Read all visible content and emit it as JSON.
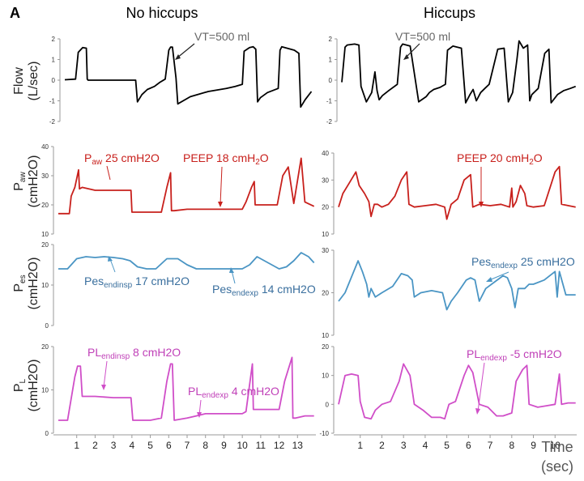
{
  "figure": {
    "panel_label": "A",
    "columns": [
      "No hiccups",
      "Hiccups"
    ],
    "row_labels": [
      {
        "main": "Flow",
        "sub": "",
        "line2": "(L/sec)"
      },
      {
        "main": "P",
        "sub": "aw",
        "line2": "(cmH2O)"
      },
      {
        "main": "P",
        "sub": "es",
        "line2": "(cmH2O)"
      },
      {
        "main": "P",
        "sub": "L",
        "line2": "(cmH2O)"
      }
    ],
    "time_label": "Time",
    "time_unit": "(sec)"
  },
  "chart_data": [
    {
      "type": "line",
      "id": "flow-left",
      "column": "No hiccups",
      "ylabel": "Flow (L/sec)",
      "ylim": [
        -2,
        2
      ],
      "yticks": [
        "2",
        "1",
        "0",
        "-1",
        "-2"
      ],
      "xlim": [
        0,
        14
      ],
      "color": "#000000",
      "x": [
        0,
        0.6,
        0.75,
        1.0,
        1.2,
        1.25,
        1.3,
        2.0,
        3.0,
        3.5,
        3.95,
        4.05,
        4.3,
        4.6,
        5.0,
        5.3,
        5.6,
        5.8,
        5.9,
        6.0,
        6.2,
        6.3,
        7.0,
        8.0,
        9.0,
        9.5,
        9.9,
        10.0,
        10.3,
        10.5,
        10.65,
        10.75,
        10.9,
        11.3,
        11.9,
        12.0,
        12.1,
        12.8,
        13.05,
        13.15,
        13.4,
        13.75
      ],
      "y": [
        0.02,
        0.05,
        1.35,
        1.58,
        1.55,
        0.05,
        0.0,
        0.0,
        0.0,
        0.0,
        0.0,
        -1.05,
        -0.7,
        -0.45,
        -0.3,
        -0.1,
        0.05,
        1.45,
        1.6,
        1.6,
        0.1,
        -1.15,
        -0.8,
        -0.55,
        -0.4,
        -0.3,
        -0.2,
        1.4,
        1.58,
        1.62,
        1.5,
        -1.05,
        -0.85,
        -0.6,
        -0.4,
        1.45,
        1.62,
        1.45,
        1.3,
        -1.3,
        -0.95,
        -0.55
      ],
      "annotations": [
        {
          "text": "VT=500 ml",
          "sub": ""
        }
      ]
    },
    {
      "type": "line",
      "id": "flow-right",
      "column": "Hiccups",
      "ylabel": "Flow (L/sec)",
      "ylim": [
        -2,
        2
      ],
      "yticks": [
        "2",
        "1",
        "0",
        "-1",
        "-2"
      ],
      "xlim": [
        0,
        11
      ],
      "color": "#000000",
      "x": [
        0,
        0.15,
        0.25,
        0.6,
        0.8,
        0.9,
        1.15,
        1.4,
        1.55,
        1.65,
        1.75,
        1.9,
        2.2,
        2.6,
        2.75,
        2.85,
        3.2,
        3.6,
        3.95,
        4.1,
        4.3,
        4.6,
        4.85,
        4.95,
        5.2,
        5.6,
        5.8,
        6.0,
        6.15,
        6.3,
        6.5,
        6.7,
        6.9,
        7.3,
        7.6,
        7.8,
        8.0,
        8.2,
        8.3,
        8.5,
        8.7,
        8.8,
        8.9,
        9.2,
        9.5,
        9.7,
        9.8,
        10.1,
        10.4,
        10.7,
        10.95
      ],
      "y": [
        -0.1,
        1.6,
        1.7,
        1.75,
        1.7,
        -0.3,
        -1.05,
        -0.6,
        0.4,
        -0.5,
        -0.95,
        -0.75,
        -0.5,
        -0.2,
        1.6,
        1.75,
        1.65,
        -1.05,
        -0.8,
        -0.6,
        -0.45,
        -0.35,
        -0.2,
        1.45,
        1.65,
        1.55,
        -1.1,
        -0.7,
        -0.45,
        -1.0,
        -0.6,
        -0.4,
        -0.2,
        1.5,
        1.55,
        -1.05,
        -0.6,
        1.0,
        1.9,
        1.55,
        1.7,
        -1.0,
        -0.7,
        -0.4,
        1.3,
        1.5,
        -1.1,
        -0.7,
        -0.5,
        -0.4,
        -0.3
      ],
      "annotations": [
        {
          "text": "VT=500 ml",
          "sub": ""
        }
      ]
    },
    {
      "type": "line",
      "id": "paw-left",
      "column": "No hiccups",
      "ylabel": "Paw (cmH2O)",
      "ylim": [
        10,
        40
      ],
      "yticks": [
        "40",
        "30",
        "20",
        "10"
      ],
      "xlim": [
        0,
        14
      ],
      "color": "#c8201c",
      "x": [
        0,
        0.6,
        0.7,
        0.9,
        1.1,
        1.15,
        1.3,
        2.0,
        3.0,
        3.8,
        3.95,
        4.0,
        4.1,
        5.0,
        5.6,
        5.9,
        6.1,
        6.15,
        6.3,
        7.0,
        8.0,
        9.0,
        10.0,
        10.2,
        10.5,
        10.65,
        10.7,
        10.85,
        11.5,
        11.9,
        12.2,
        12.5,
        12.8,
        13.2,
        13.4,
        13.9
      ],
      "y": [
        17,
        17,
        23,
        26,
        32,
        25.5,
        26,
        25,
        25,
        25,
        25,
        17.5,
        17.5,
        17.5,
        17.5,
        26,
        31,
        18,
        18,
        18.5,
        18.5,
        18.5,
        18.5,
        21,
        26,
        28,
        20,
        20,
        20,
        20,
        30,
        33,
        20.5,
        36,
        21,
        19.5
      ],
      "annotations": [
        {
          "text": "P",
          "sub": "aw",
          "after": " 25 cmH2O"
        },
        {
          "text": "PEEP 18 cmH",
          "sub": "2",
          "after": "O"
        }
      ]
    },
    {
      "type": "line",
      "id": "paw-right",
      "column": "Hiccups",
      "ylabel": "Paw (cmH2O)",
      "ylim": [
        10,
        40
      ],
      "yticks": [
        "40",
        "30",
        "20",
        "10"
      ],
      "xlim": [
        0,
        11
      ],
      "color": "#c8201c",
      "x": [
        0,
        0.2,
        0.5,
        0.8,
        0.95,
        1.2,
        1.4,
        1.5,
        1.65,
        1.8,
        2.0,
        2.3,
        2.6,
        2.9,
        3.15,
        3.25,
        3.5,
        4.0,
        4.5,
        4.9,
        5.0,
        5.2,
        5.5,
        5.8,
        6.1,
        6.2,
        6.5,
        7.0,
        7.5,
        7.9,
        8.0,
        8.05,
        8.2,
        8.4,
        8.6,
        8.7,
        9.0,
        9.5,
        10.0,
        10.2,
        10.3,
        10.95
      ],
      "y": [
        20,
        25,
        29,
        33,
        28,
        25,
        22,
        16.5,
        21,
        21,
        20,
        21,
        24,
        30,
        33,
        21,
        20,
        20.5,
        21,
        20,
        15.5,
        21,
        23,
        30,
        32,
        20,
        21,
        20.5,
        21,
        20,
        27,
        20,
        22,
        28,
        25,
        20.5,
        20,
        20.5,
        33,
        35,
        21,
        20
      ],
      "annotations": [
        {
          "text": "PEEP 20 cmH",
          "sub": "2",
          "after": "O"
        }
      ]
    },
    {
      "type": "line",
      "id": "pes-left",
      "column": "No hiccups",
      "ylabel": "Pes (cmH2O)",
      "ylim": [
        0,
        20
      ],
      "yticks": [
        "20",
        "10",
        "0"
      ],
      "xlim": [
        0,
        14
      ],
      "color": "#4a95c4",
      "x": [
        0,
        0.5,
        1.0,
        1.5,
        2.0,
        2.5,
        3.0,
        3.5,
        3.9,
        4.3,
        4.8,
        5.3,
        5.9,
        6.5,
        7.0,
        7.5,
        8.0,
        8.5,
        9.0,
        9.5,
        10.0,
        10.4,
        10.8,
        11.2,
        11.6,
        12.0,
        12.4,
        12.8,
        13.2,
        13.6,
        13.9
      ],
      "y": [
        14,
        14,
        16.5,
        17,
        16.8,
        17,
        16.8,
        16.5,
        16,
        14.5,
        14,
        14,
        16.5,
        16.5,
        15,
        14,
        14,
        14,
        14,
        14,
        14,
        15,
        17,
        16,
        15,
        14,
        14.5,
        16,
        18,
        17,
        15.5
      ],
      "annotations": [
        {
          "text": "Pes",
          "sub": "endinsp",
          "after": " 17 cmH2O"
        },
        {
          "text": "Pes",
          "sub": "endexp",
          "after": " 14 cmH2O"
        }
      ]
    },
    {
      "type": "line",
      "id": "pes-right",
      "column": "Hiccups",
      "ylabel": "Pes (cmH2O)",
      "ylim": [
        10,
        30
      ],
      "yticks": [
        "30",
        "20",
        "10"
      ],
      "xlim": [
        0,
        11
      ],
      "color": "#4a95c4",
      "x": [
        0,
        0.3,
        0.7,
        0.9,
        1.1,
        1.3,
        1.4,
        1.5,
        1.7,
        2.0,
        2.5,
        2.9,
        3.2,
        3.4,
        3.5,
        3.8,
        4.3,
        4.8,
        5.0,
        5.2,
        5.5,
        5.9,
        6.1,
        6.3,
        6.5,
        6.8,
        7.2,
        7.6,
        7.8,
        8.0,
        8.15,
        8.3,
        8.6,
        8.8,
        9.0,
        9.5,
        10.0,
        10.1,
        10.2,
        10.5,
        10.95
      ],
      "y": [
        18,
        20,
        25,
        27.5,
        25,
        22,
        19,
        21,
        19,
        20,
        21.5,
        24.5,
        24,
        23,
        19,
        20,
        20.5,
        20,
        16,
        18,
        20,
        23,
        23.5,
        23,
        18,
        21,
        22.5,
        24,
        23.5,
        21,
        16.5,
        21,
        21,
        22,
        22,
        23,
        25,
        19,
        25,
        19.5,
        19.5
      ],
      "annotations": [
        {
          "text": "Pes",
          "sub": "endexp",
          "after": " 25 cmH2O"
        }
      ]
    },
    {
      "type": "line",
      "id": "pl-left",
      "column": "No hiccups",
      "ylabel": "PL (cmH2O)",
      "ylim": [
        0,
        20
      ],
      "yticks": [
        "20",
        "10",
        "0"
      ],
      "xlim": [
        0,
        14
      ],
      "color": "#d04ec8",
      "x": [
        0,
        0.5,
        0.7,
        0.9,
        1.05,
        1.2,
        1.3,
        2.0,
        3.0,
        3.8,
        3.95,
        4.05,
        4.5,
        5.0,
        5.6,
        5.9,
        6.1,
        6.2,
        6.3,
        7.0,
        7.5,
        8.0,
        9.0,
        10.0,
        10.2,
        10.55,
        10.6,
        10.8,
        11.5,
        12.0,
        12.3,
        12.7,
        12.75,
        12.9,
        13.4,
        13.9
      ],
      "y": [
        3,
        3,
        8,
        13,
        15.5,
        15.5,
        8.5,
        8.5,
        8.2,
        8.2,
        8.2,
        3,
        3,
        3,
        3.5,
        12,
        16,
        16,
        3,
        3.5,
        4,
        4.5,
        4.5,
        4.5,
        5,
        16,
        5.5,
        5.5,
        5.5,
        5.5,
        12,
        17.5,
        3.5,
        3.5,
        4,
        4
      ],
      "annotations": [
        {
          "text": "PL",
          "sub": "endinsp",
          "after": " 8 cmH2O"
        },
        {
          "text": "PL",
          "sub": "endexp",
          "after": " 4 cmH2O"
        }
      ]
    },
    {
      "type": "line",
      "id": "pl-right",
      "column": "Hiccups",
      "ylabel": "PL (cmH2O)",
      "ylim": [
        -10,
        20
      ],
      "yticks": [
        "20",
        "10",
        "0",
        "-10"
      ],
      "xlim": [
        0,
        11
      ],
      "color": "#d04ec8",
      "x": [
        0,
        0.3,
        0.6,
        0.9,
        1.0,
        1.2,
        1.5,
        1.7,
        2.0,
        2.4,
        2.8,
        3.0,
        3.3,
        3.5,
        3.9,
        4.3,
        4.7,
        4.9,
        5.1,
        5.4,
        5.8,
        6.0,
        6.2,
        6.5,
        6.9,
        7.3,
        7.6,
        8.0,
        8.2,
        8.5,
        8.7,
        8.8,
        9.2,
        9.6,
        10.0,
        10.2,
        10.3,
        10.6,
        10.95
      ],
      "y": [
        0,
        10,
        10.5,
        10,
        1,
        -4.5,
        -5,
        -2,
        0,
        1,
        8,
        14,
        10,
        0,
        -2,
        -4.5,
        -4.5,
        -5,
        0,
        1,
        10,
        13.5,
        11,
        0,
        -1,
        -4,
        -4,
        -3,
        8,
        12,
        13.5,
        0,
        -1,
        -0.5,
        0,
        10.5,
        0,
        0.5,
        0.5
      ],
      "annotations": [
        {
          "text": "PL",
          "sub": "endexp",
          "after": " -5 cmH2O"
        }
      ]
    }
  ],
  "xticks_left": [
    "1",
    "2",
    "3",
    "4",
    "5",
    "6",
    "7",
    "8",
    "9",
    "10",
    "11",
    "12",
    "13"
  ],
  "xticks_right": [
    "1",
    "2",
    "3",
    "4",
    "5",
    "6",
    "7",
    "8",
    "9",
    "10"
  ]
}
